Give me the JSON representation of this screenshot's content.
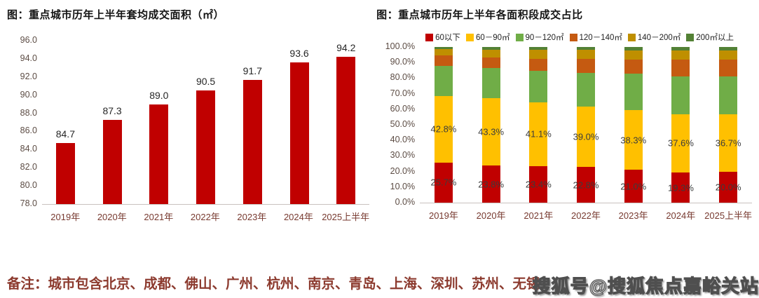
{
  "note": "备注：城市包含北京、成都、佛山、广州、杭州、南京、青岛、上海、深圳、苏州、无锡",
  "watermark": "搜狐号@搜狐焦点嘉峪关站",
  "chart_data": [
    {
      "type": "bar",
      "title": "图：重点城市历年上半年套均成交面积（㎡）",
      "categories": [
        "2019年",
        "2020年",
        "2021年",
        "2022年",
        "2023年",
        "2024年",
        "2025上半年"
      ],
      "values": [
        84.7,
        87.3,
        89.0,
        90.5,
        91.7,
        93.6,
        94.2
      ],
      "value_labels": [
        "84.7",
        "87.3",
        "89.0",
        "90.5",
        "91.7",
        "93.6",
        "94.2"
      ],
      "ylim": [
        78.0,
        96.0
      ],
      "yticks": [
        "96.0",
        "94.0",
        "92.0",
        "90.0",
        "88.0",
        "86.0",
        "84.0",
        "82.0",
        "80.0",
        "78.0"
      ],
      "bar_color": "#c00000",
      "grid": false,
      "legend_position": "none",
      "xlabel": "",
      "ylabel": ""
    },
    {
      "type": "bar",
      "stacked": true,
      "title": "图：重点城市历年上半年各面积段成交占比",
      "categories": [
        "2019年",
        "2020年",
        "2021年",
        "2022年",
        "2023年",
        "2024年",
        "2025上半年"
      ],
      "ylim": [
        0,
        100
      ],
      "yticks": [
        "100.0%",
        "90.0%",
        "80.0%",
        "70.0%",
        "60.0%",
        "50.0%",
        "40.0%",
        "30.0%",
        "20.0%",
        "10.0%",
        "0.0%"
      ],
      "grid": false,
      "legend_position": "top",
      "xlabel": "",
      "ylabel": "",
      "series": [
        {
          "name": "60以下",
          "color": "#c00000",
          "values": [
            25.7,
            23.8,
            23.4,
            22.8,
            21.0,
            19.3,
            20.0
          ],
          "labels": [
            "25.7%",
            "23.8%",
            "23.4%",
            "22.8%",
            "21.0%",
            "19.3%",
            "20.0%"
          ]
        },
        {
          "name": "60－90㎡",
          "color": "#ffc000",
          "values": [
            42.8,
            43.3,
            41.1,
            39.0,
            38.3,
            37.6,
            36.7
          ],
          "labels": [
            "42.8%",
            "43.3%",
            "41.1%",
            "39.0%",
            "38.3%",
            "37.6%",
            "36.7%"
          ]
        },
        {
          "name": "90－120㎡",
          "color": "#70ad47",
          "values": [
            19.5,
            19.5,
            20.3,
            21.5,
            23.5,
            24.0,
            24.3
          ]
        },
        {
          "name": "120－140㎡",
          "color": "#c55a11",
          "values": [
            6.8,
            6.8,
            7.6,
            9.0,
            9.2,
            10.8,
            11.0
          ]
        },
        {
          "name": "140－200㎡",
          "color": "#bf8f00",
          "values": [
            4.0,
            4.8,
            5.8,
            6.0,
            5.8,
            5.9,
            5.8
          ]
        },
        {
          "name": "200㎡以上",
          "color": "#538135",
          "values": [
            1.2,
            1.8,
            1.8,
            1.7,
            2.2,
            2.4,
            2.2
          ]
        }
      ]
    }
  ]
}
